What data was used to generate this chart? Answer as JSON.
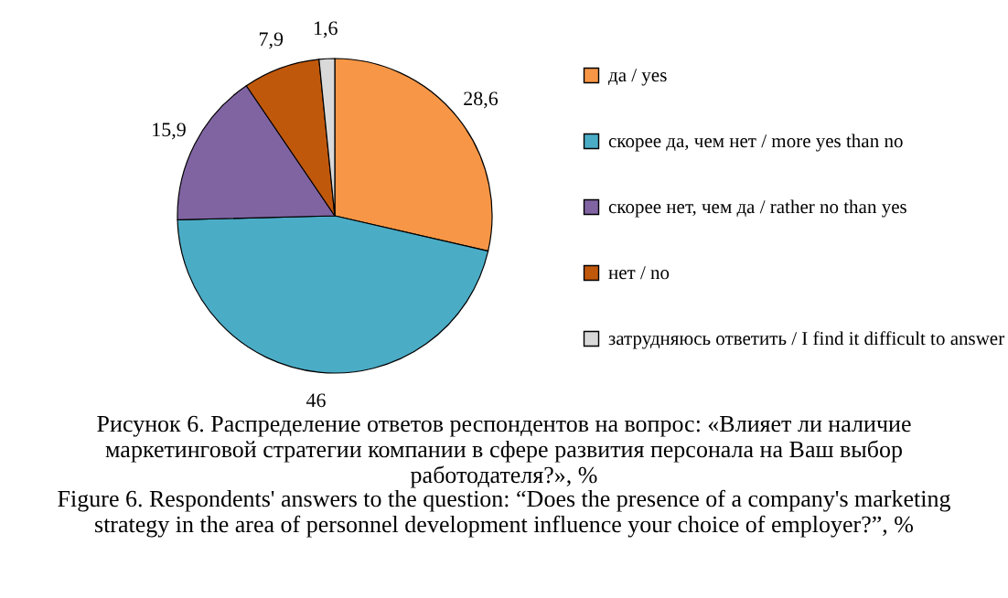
{
  "chart_data": {
    "type": "pie",
    "title": "Рисунок 6. Распределение ответов респондентов на вопрос: «Влияет ли наличие маркетинговой стратегии компании в сфере развития персонала на Ваш выбор работодателя?», %",
    "subtitle": "Figure 6. Respondents' answers to the question: “Does the presence of a company's marketing strategy in the area of personnel development influence your choice of employer?”, %",
    "categories": [
      "да / yes",
      "скорее да, чем нет / more yes than no",
      "скорее нет, чем да / rather no than yes",
      "нет / no",
      "затрудняюсь ответить / I find it difficult to answer"
    ],
    "values": [
      28.6,
      46,
      15.9,
      7.9,
      1.6
    ],
    "value_labels": [
      "28,6",
      "46",
      "15,9",
      "7,9",
      "1,6"
    ],
    "colors": [
      "#f79646",
      "#4bacc6",
      "#8064a2",
      "#c0580c",
      "#d9d9d9"
    ],
    "legend": "right"
  }
}
